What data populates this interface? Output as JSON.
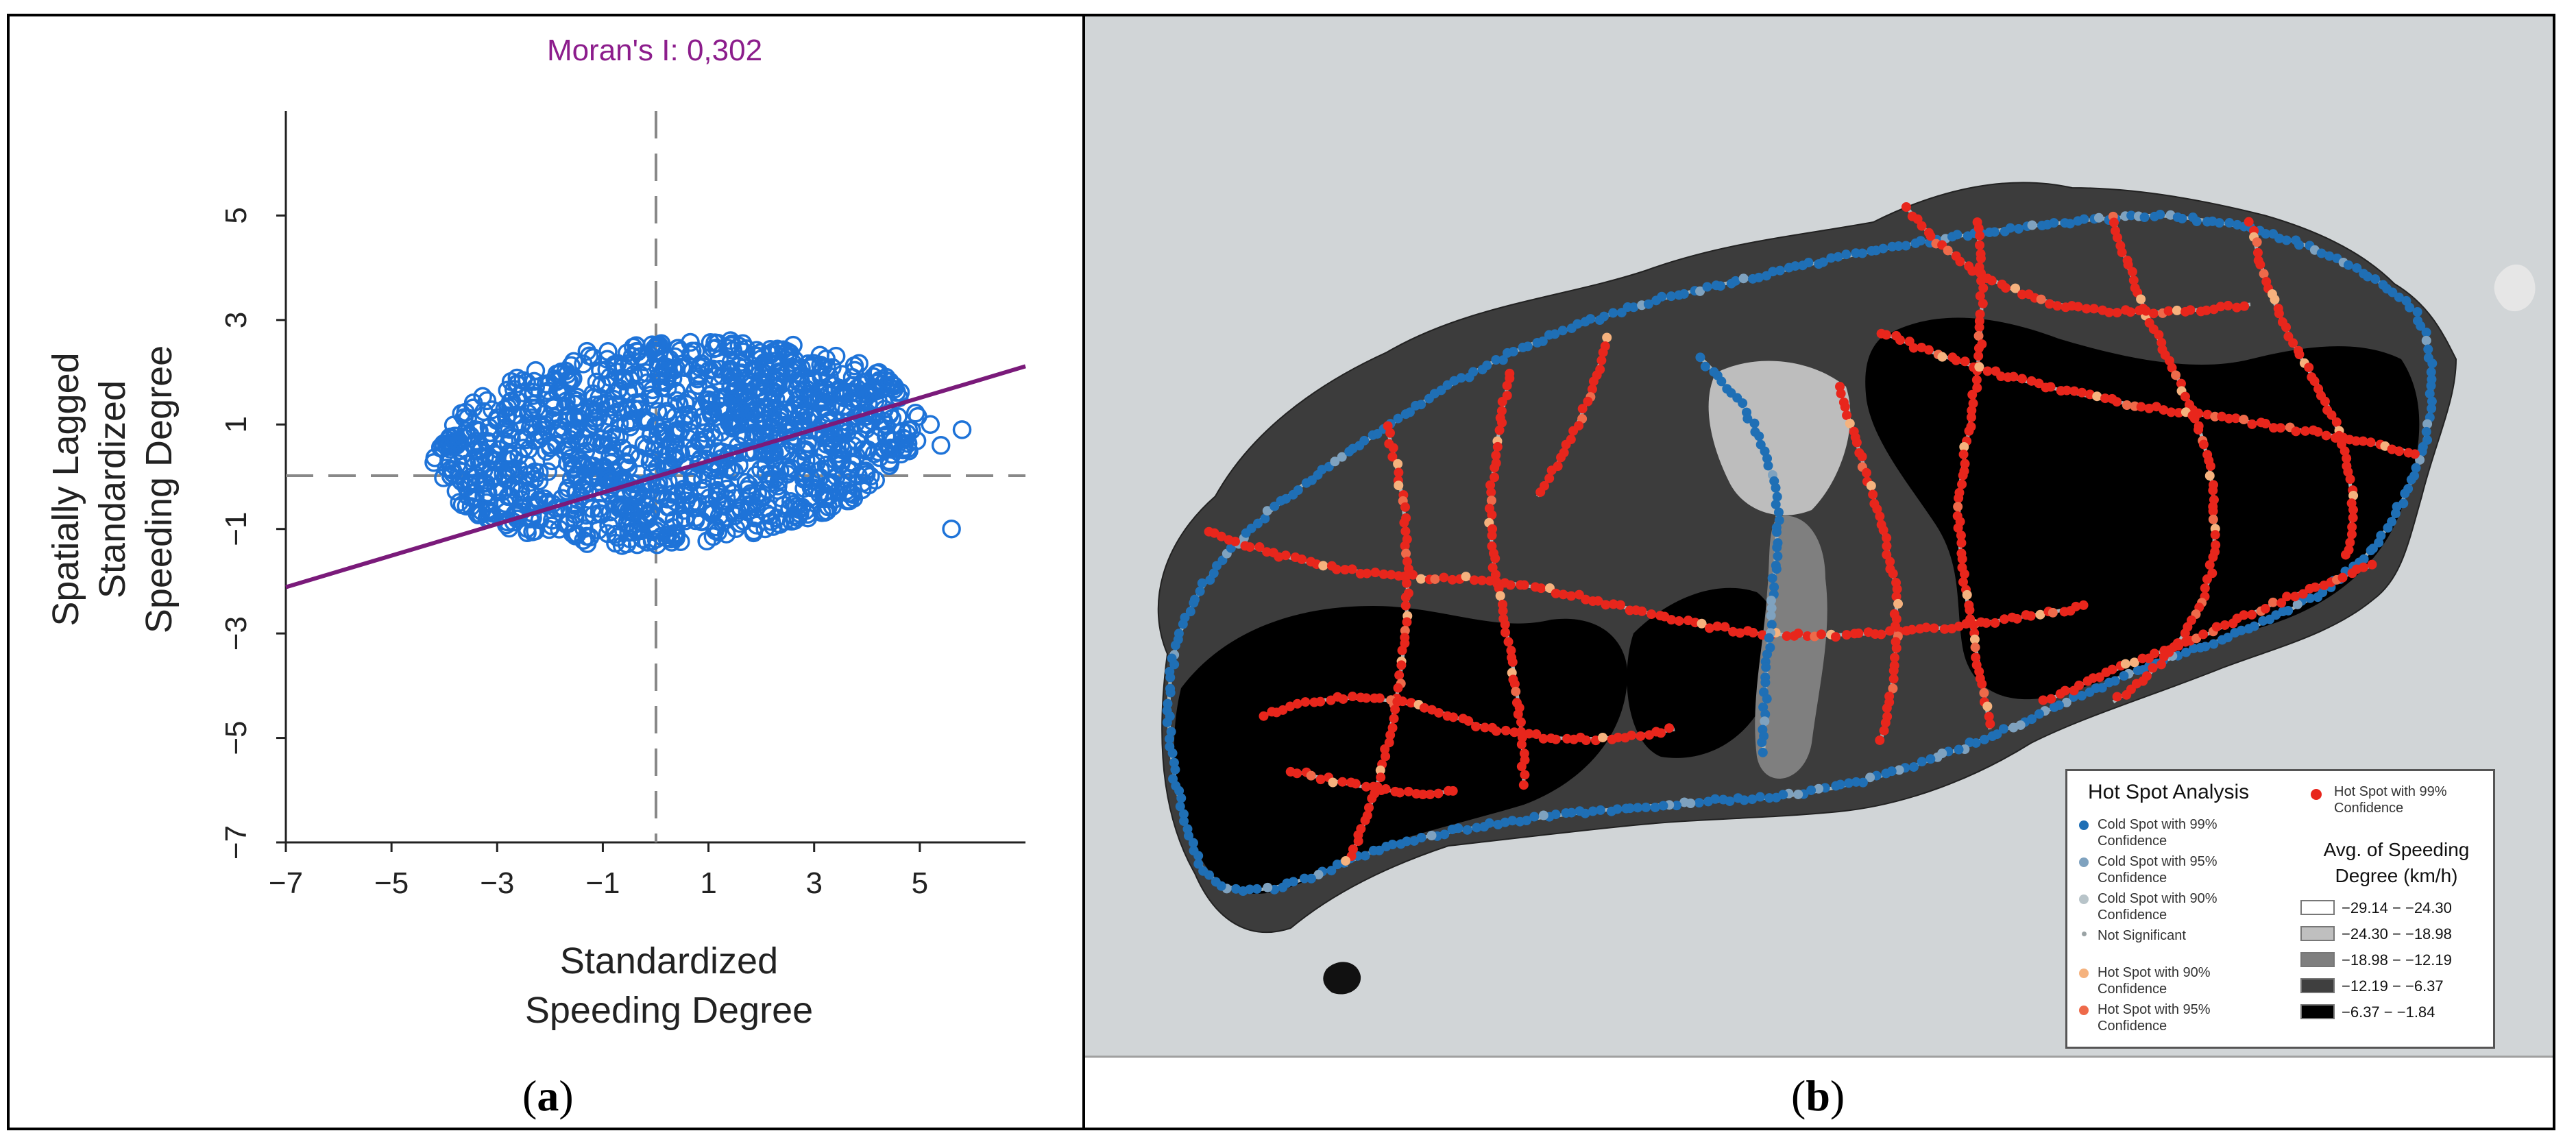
{
  "panel_a": {
    "title": "Moran's I: 0,302",
    "caption": {
      "open": "(",
      "letter": "a",
      "close": ")"
    },
    "xlabel_lines": [
      "Standardized",
      "Speeding Degree"
    ],
    "ylabel_lines": [
      "Spatially Lagged",
      "Standardized",
      "Speeding Degree"
    ],
    "x_ticks": [
      "−7",
      "−5",
      "−3",
      "−1",
      "1",
      "3",
      "5"
    ],
    "y_ticks": [
      "−7",
      "−5",
      "−3",
      "−1",
      "1",
      "3",
      "5"
    ]
  },
  "chart_data": {
    "type": "scatter",
    "title": "Moran's I: 0,302",
    "xlabel": "Standardized Speeding Degree",
    "ylabel": "Spatially Lagged Standardized Speeding Degree",
    "xlim": [
      -7,
      7
    ],
    "ylim": [
      -7,
      7
    ],
    "grid": false,
    "reference_lines": {
      "x": 0,
      "y": 0
    },
    "regression_line": {
      "slope": 0.302,
      "intercept": 0,
      "x_range": [
        -7,
        7
      ],
      "color": "#7a1a7a"
    },
    "point_color": "#1e73d8",
    "outliers": [
      {
        "x": -1.3,
        "y": 2.4
      },
      {
        "x": 0.0,
        "y": 2.4
      },
      {
        "x": 5.6,
        "y": -1.0
      },
      {
        "x": 5.2,
        "y": 1.0
      },
      {
        "x": 5.8,
        "y": 0.9
      },
      {
        "x": 5.4,
        "y": 0.6
      }
    ],
    "cloud": {
      "x_range": [
        -4.2,
        5.0
      ],
      "y_range": [
        -1.3,
        2.6
      ]
    }
  },
  "panel_b": {
    "caption": {
      "open": "(",
      "letter": "b",
      "close": ")"
    },
    "legend": {
      "title": "Hot Spot Analysis",
      "items": [
        {
          "label": "Cold Spot with 99% Confidence",
          "color": "#1f6fb5",
          "size": 14
        },
        {
          "label": "Cold Spot with 95% Confidence",
          "color": "#7fa2bf",
          "size": 14
        },
        {
          "label": "Cold Spot with 90% Confidence",
          "color": "#b8c4c9",
          "size": 14
        },
        {
          "label": "Not Significant",
          "color": "#9aa3a5",
          "size": 7
        },
        {
          "label": "Hot Spot with 90% Confidence",
          "color": "#f5b27e",
          "size": 14
        },
        {
          "label": "Hot Spot with 95% Confidence",
          "color": "#ee6a4a",
          "size": 14
        }
      ],
      "hot99": {
        "label": "Hot Spot with 99% Confidence",
        "color": "#e8261c"
      },
      "avg_title_lines": [
        "Avg. of Speeding",
        "Degree (km/h)"
      ],
      "classes": [
        {
          "label": "−29.14 − −24.30",
          "color": "#ffffff"
        },
        {
          "label": "−24.30 − −18.98",
          "color": "#bfbfbf"
        },
        {
          "label": "−18.98 − −12.19",
          "color": "#7f7f7f"
        },
        {
          "label": "−12.19 − −6.37",
          "color": "#3f3f3f"
        },
        {
          "label": "−6.37 − −1.84",
          "color": "#000000"
        }
      ]
    },
    "colors": {
      "sea": "#d1d5d7",
      "hot": "#e8261c",
      "cold": "#1f6fb5"
    }
  }
}
